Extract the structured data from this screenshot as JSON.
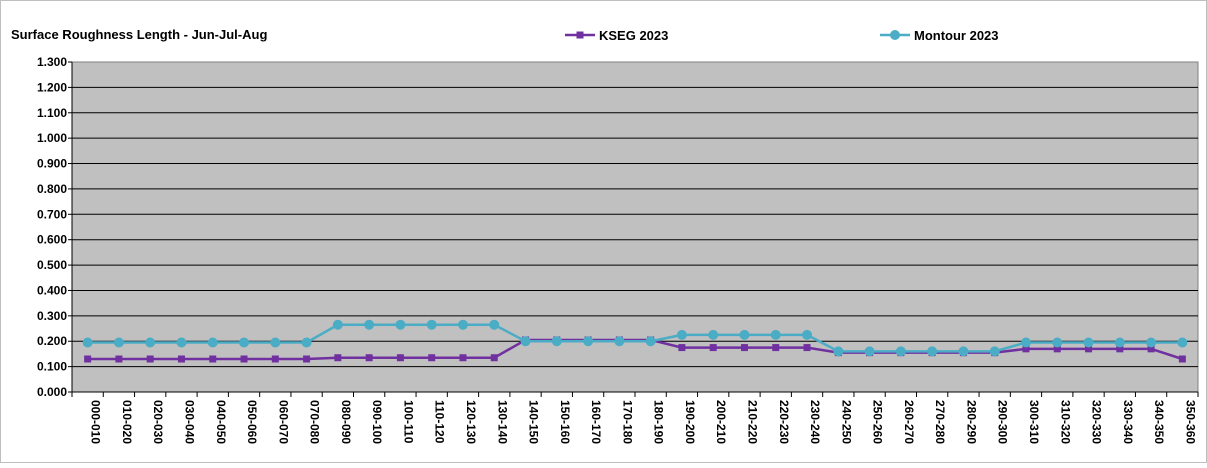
{
  "chart_data": {
    "type": "line",
    "title": "Surface Roughness Length - Jun-Jul-Aug",
    "xlabel": "",
    "ylabel": "",
    "ylim": [
      0,
      1.3
    ],
    "y_ticks": [
      "0.000",
      "0.100",
      "0.200",
      "0.300",
      "0.400",
      "0.500",
      "0.600",
      "0.700",
      "0.800",
      "0.900",
      "1.000",
      "1.100",
      "1.200",
      "1.300"
    ],
    "grid": true,
    "legend_position": "top-center",
    "categories": [
      "000-010",
      "010-020",
      "020-030",
      "030-040",
      "040-050",
      "050-060",
      "060-070",
      "070-080",
      "080-090",
      "090-100",
      "100-110",
      "110-120",
      "120-130",
      "130-140",
      "140-150",
      "150-160",
      "160-170",
      "170-180",
      "180-190",
      "190-200",
      "200-210",
      "210-220",
      "220-230",
      "230-240",
      "240-250",
      "250-260",
      "260-270",
      "270-280",
      "280-290",
      "290-300",
      "300-310",
      "310-320",
      "320-330",
      "330-340",
      "340-350",
      "350-360"
    ],
    "series": [
      {
        "name": "KSEG 2023",
        "color": "#7030a0",
        "marker": "square",
        "values": [
          0.13,
          0.13,
          0.13,
          0.13,
          0.13,
          0.13,
          0.13,
          0.13,
          0.135,
          0.135,
          0.135,
          0.135,
          0.135,
          0.135,
          0.205,
          0.205,
          0.205,
          0.205,
          0.205,
          0.175,
          0.175,
          0.175,
          0.175,
          0.175,
          0.155,
          0.155,
          0.155,
          0.155,
          0.155,
          0.155,
          0.17,
          0.17,
          0.17,
          0.17,
          0.17,
          0.13
        ]
      },
      {
        "name": "Montour 2023",
        "color": "#4bacc6",
        "marker": "circle",
        "values": [
          0.195,
          0.195,
          0.195,
          0.195,
          0.195,
          0.195,
          0.195,
          0.195,
          0.265,
          0.265,
          0.265,
          0.265,
          0.265,
          0.265,
          0.2,
          0.2,
          0.2,
          0.2,
          0.2,
          0.225,
          0.225,
          0.225,
          0.225,
          0.225,
          0.16,
          0.16,
          0.16,
          0.16,
          0.16,
          0.16,
          0.195,
          0.195,
          0.195,
          0.195,
          0.195,
          0.195
        ]
      }
    ]
  }
}
